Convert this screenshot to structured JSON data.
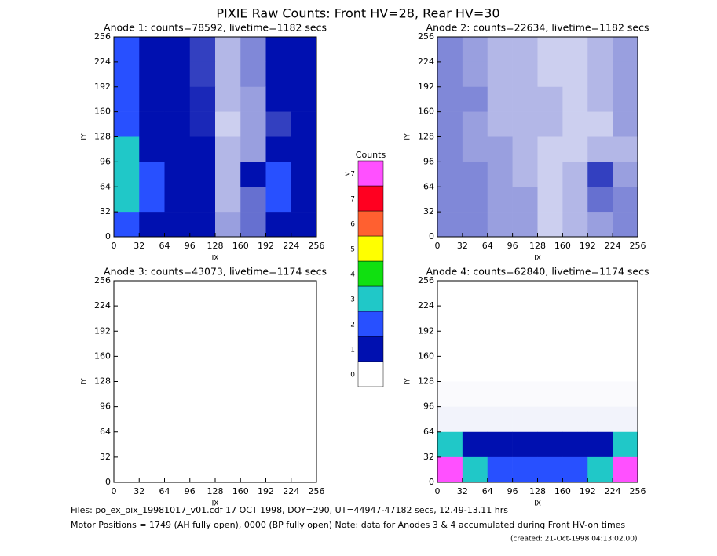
{
  "title": "PIXIE Raw Counts:  Front HV=28, Rear HV=30",
  "colorbar": {
    "title": "Counts",
    "labels": [
      "0",
      "1",
      "2",
      "3",
      "4",
      "5",
      "6",
      "7",
      ">7"
    ],
    "colors": [
      "#ffffff",
      "#0010b0",
      "#2850ff",
      "#20c8c8",
      "#10e010",
      "#ffff00",
      "#ff6030",
      "#ff0020",
      "#ff50ff"
    ]
  },
  "footer": {
    "files": "Files: po_ex_pix_19981017_v01.cdf    17 OCT 1998, DOY=290, UT=44947-47182 secs, 12.49-13.11 hrs",
    "motor": "Motor Positions = 1749 (AH fully open), 0000 (BP fully open)    Note: data for Anodes 3 & 4 accumulated during Front HV-on times",
    "created": "(created: 21-Oct-1998 04:13:02.00)"
  },
  "chart_data": [
    {
      "type": "heatmap",
      "title": "Anode 1: counts=78592, livetime=1182 secs",
      "xlabel": "IX",
      "ylabel": "IY",
      "xlim": [
        0,
        256
      ],
      "ylim": [
        0,
        256
      ],
      "xticks": [
        0,
        32,
        64,
        96,
        128,
        160,
        192,
        224,
        256
      ],
      "yticks": [
        0,
        32,
        64,
        96,
        128,
        160,
        192,
        224,
        256
      ],
      "z": [
        [
          2.5,
          1.5,
          1.2,
          0.8,
          0.3,
          0.5,
          1.2,
          1.5
        ],
        [
          2.5,
          1.5,
          1.0,
          0.8,
          0.3,
          0.5,
          1.0,
          1.5
        ],
        [
          2.8,
          1.6,
          1.2,
          0.9,
          0.3,
          0.4,
          1.0,
          1.3
        ],
        [
          2.8,
          1.6,
          1.2,
          0.9,
          0.2,
          0.4,
          0.8,
          1.0
        ],
        [
          3,
          1.8,
          1.5,
          1.0,
          0.3,
          0.4,
          1.0,
          1.0
        ],
        [
          3,
          2,
          1.5,
          1.0,
          0.3,
          1.5,
          2.5,
          1.2
        ],
        [
          3,
          2,
          1.5,
          1.2,
          0.3,
          0.6,
          2.2,
          1.8
        ],
        [
          2.5,
          1.8,
          1.5,
          1.2,
          0.4,
          0.6,
          1.8,
          1.8
        ]
      ]
    },
    {
      "type": "heatmap",
      "title": "Anode 2: counts=22634, livetime=1182 secs",
      "xlabel": "IX",
      "ylabel": "IY",
      "xlim": [
        0,
        256
      ],
      "ylim": [
        0,
        256
      ],
      "xticks": [
        0,
        32,
        64,
        96,
        128,
        160,
        192,
        224,
        256
      ],
      "yticks": [
        0,
        32,
        64,
        96,
        128,
        160,
        192,
        224,
        256
      ],
      "z": [
        [
          0.5,
          0.4,
          0.3,
          0.3,
          0.2,
          0.2,
          0.3,
          0.4
        ],
        [
          0.5,
          0.4,
          0.3,
          0.3,
          0.2,
          0.2,
          0.3,
          0.4
        ],
        [
          0.5,
          0.5,
          0.3,
          0.3,
          0.3,
          0.2,
          0.3,
          0.4
        ],
        [
          0.5,
          0.4,
          0.3,
          0.3,
          0.3,
          0.2,
          0.2,
          0.4
        ],
        [
          0.5,
          0.4,
          0.4,
          0.3,
          0.2,
          0.2,
          0.3,
          0.3
        ],
        [
          0.5,
          0.5,
          0.4,
          0.3,
          0.2,
          0.3,
          0.8,
          0.4
        ],
        [
          0.5,
          0.5,
          0.4,
          0.4,
          0.2,
          0.3,
          0.6,
          0.5
        ],
        [
          0.5,
          0.5,
          0.4,
          0.4,
          0.2,
          0.3,
          0.4,
          0.5
        ]
      ]
    },
    {
      "type": "heatmap",
      "title": "Anode 3: counts=43073, livetime=1174 secs",
      "xlabel": "IX",
      "ylabel": "IY",
      "xlim": [
        0,
        256
      ],
      "ylim": [
        0,
        256
      ],
      "xticks": [
        0,
        32,
        64,
        96,
        128,
        160,
        192,
        224,
        256
      ],
      "yticks": [
        0,
        32,
        64,
        96,
        128,
        160,
        192,
        224,
        256
      ],
      "z": [
        [
          0,
          0,
          0,
          0,
          0,
          0,
          0,
          0
        ],
        [
          0,
          0,
          0,
          0,
          0,
          0,
          0,
          0
        ],
        [
          0,
          0,
          0,
          0,
          0,
          0,
          0,
          0
        ],
        [
          0,
          0,
          0,
          0,
          0,
          0,
          0,
          0
        ],
        [
          0,
          0,
          0,
          0,
          0,
          0,
          0,
          0
        ],
        [
          0,
          0,
          0,
          0,
          0,
          0,
          0,
          0
        ],
        [
          0,
          0,
          0,
          0,
          0,
          0,
          0,
          0
        ],
        [
          0,
          0,
          0,
          0,
          0,
          0,
          0,
          0
        ]
      ]
    },
    {
      "type": "heatmap",
      "title": "Anode 4: counts=62840, livetime=1174 secs",
      "xlabel": "IX",
      "ylabel": "IY",
      "xlim": [
        0,
        256
      ],
      "ylim": [
        0,
        256
      ],
      "xticks": [
        0,
        32,
        64,
        96,
        128,
        160,
        192,
        224,
        256
      ],
      "yticks": [
        0,
        32,
        64,
        96,
        128,
        160,
        192,
        224,
        256
      ],
      "z": [
        [
          0,
          0,
          0,
          0,
          0,
          0,
          0,
          0
        ],
        [
          0,
          0,
          0,
          0,
          0,
          0,
          0,
          0
        ],
        [
          0,
          0,
          0,
          0,
          0,
          0,
          0,
          0
        ],
        [
          0,
          0,
          0,
          0,
          0,
          0,
          0,
          0
        ],
        [
          0.02,
          0.02,
          0.02,
          0.02,
          0.02,
          0.02,
          0.02,
          0.02
        ],
        [
          0.05,
          0.05,
          0.05,
          0.05,
          0.05,
          0.05,
          0.05,
          0.05
        ],
        [
          3,
          1.5,
          1.5,
          1.5,
          1.5,
          1.5,
          1.5,
          3
        ],
        [
          8,
          3,
          2.5,
          2,
          2,
          2.5,
          3,
          8
        ]
      ]
    }
  ]
}
